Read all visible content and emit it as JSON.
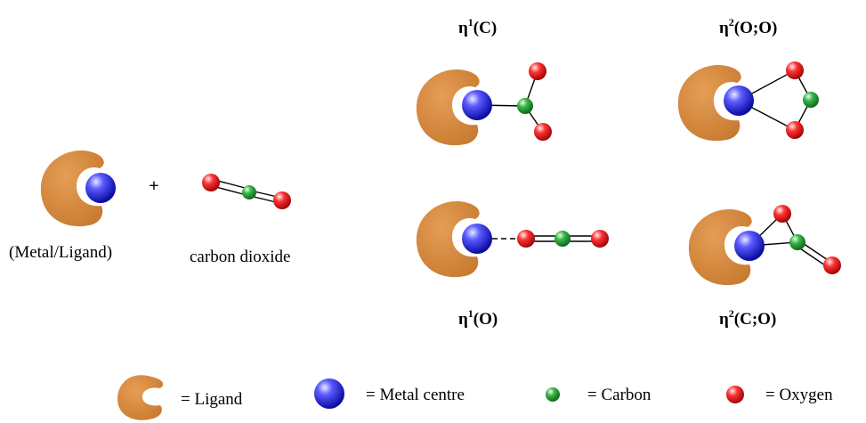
{
  "colors": {
    "ligand": "#d2883f",
    "metal": "#2a2ad8",
    "carbon": "#2f9a3a",
    "oxygen": "#e01818"
  },
  "reactants": {
    "metal_ligand_label": "(Metal/Ligand)",
    "plus": "+",
    "co2_label": "carbon dioxide"
  },
  "modes": [
    {
      "id": "eta1-c",
      "prefix": "η",
      "sup": "1",
      "suffix": "(C)"
    },
    {
      "id": "eta2-oo",
      "prefix": "η",
      "sup": "2",
      "suffix": "(O;O)"
    },
    {
      "id": "eta1-o",
      "prefix": "η",
      "sup": "1",
      "suffix": "(O)"
    },
    {
      "id": "eta2-co",
      "prefix": "η",
      "sup": "2",
      "suffix": "(C;O)"
    }
  ],
  "legend": {
    "ligand": "= Ligand",
    "metal": "= Metal centre",
    "carbon": "= Carbon",
    "oxygen": "= Oxygen"
  }
}
